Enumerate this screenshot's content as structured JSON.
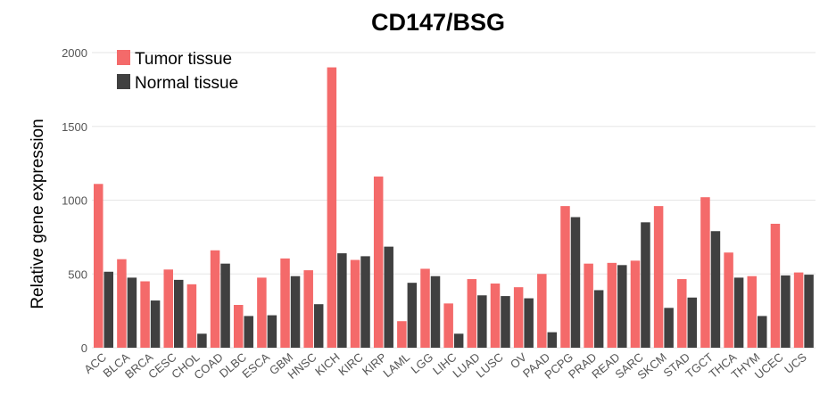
{
  "chart_data": {
    "type": "bar",
    "title": "CD147/BSG",
    "xlabel": "",
    "ylabel": "Relative gene expression",
    "ylim": [
      0,
      2000
    ],
    "yticks": [
      0,
      500,
      1000,
      1500,
      2000
    ],
    "grid": true,
    "legend_position": "top-left",
    "categories": [
      "ACC",
      "BLCA",
      "BRCA",
      "CESC",
      "CHOL",
      "COAD",
      "DLBC",
      "ESCA",
      "GBM",
      "HNSC",
      "KICH",
      "KIRC",
      "KIRP",
      "LAML",
      "LGG",
      "LIHC",
      "LUAD",
      "LUSC",
      "OV",
      "PAAD",
      "PCPG",
      "PRAD",
      "READ",
      "SARC",
      "SKCM",
      "STAD",
      "TGCT",
      "THCA",
      "THYM",
      "UCEC",
      "UCS"
    ],
    "series": [
      {
        "name": "Tumor tissue",
        "color": "#f46a6a",
        "values": [
          1110,
          600,
          450,
          530,
          430,
          660,
          290,
          475,
          605,
          525,
          1900,
          595,
          1160,
          180,
          535,
          300,
          465,
          435,
          410,
          500,
          960,
          570,
          575,
          590,
          960,
          465,
          1020,
          645,
          485,
          840,
          510
        ]
      },
      {
        "name": "Normal tissue",
        "color": "#404040",
        "values": [
          515,
          475,
          320,
          460,
          95,
          570,
          215,
          220,
          485,
          295,
          640,
          620,
          685,
          440,
          485,
          95,
          355,
          350,
          335,
          105,
          885,
          390,
          560,
          850,
          270,
          340,
          790,
          475,
          215,
          490,
          495
        ]
      }
    ]
  }
}
